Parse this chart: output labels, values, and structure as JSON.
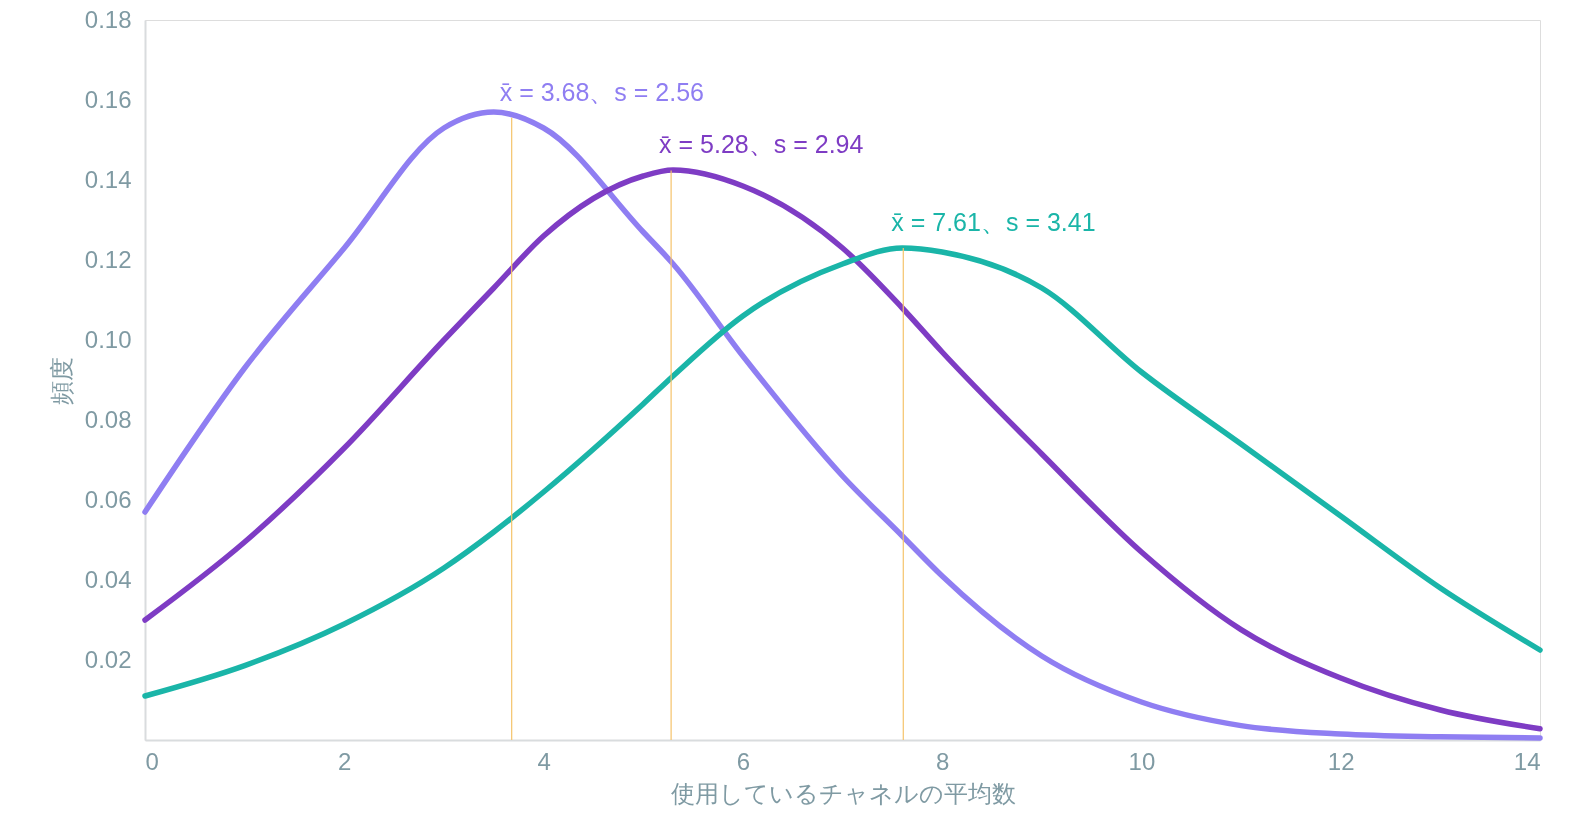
{
  "chart_data": {
    "type": "line",
    "xlabel": "使用しているチャネルの平均数",
    "ylabel": "頻度",
    "x": [
      0,
      1,
      2,
      3,
      3.5,
      4,
      5,
      5.3,
      6,
      7,
      7.6,
      8,
      9,
      10,
      11,
      12,
      13,
      14
    ],
    "series": [
      {
        "color": "#8f7ef2",
        "values": [
          0.057,
          0.093,
          0.123,
          0.153,
          0.157,
          0.153,
          0.127,
          0.119,
          0.096,
          0.066,
          0.051,
          0.041,
          0.021,
          0.0095,
          0.0036,
          0.0015,
          0.0008,
          0.0005
        ]
      },
      {
        "color": "#7e3cc4",
        "values": [
          0.03,
          0.0495,
          0.073,
          0.1,
          0.113,
          0.126,
          0.141,
          0.1425,
          0.1385,
          0.123,
          0.108,
          0.097,
          0.0715,
          0.047,
          0.0276,
          0.0155,
          0.0075,
          0.0028
        ]
      },
      {
        "color": "#1ab5a8",
        "values": [
          0.011,
          0.0186,
          0.029,
          0.043,
          0.052,
          0.062,
          0.084,
          0.091,
          0.106,
          0.119,
          0.123,
          0.122,
          0.113,
          0.092,
          0.074,
          0.056,
          0.038,
          0.0225
        ]
      }
    ],
    "xlim": [
      0,
      14
    ],
    "ylim": [
      0,
      0.18
    ],
    "xticks": [
      0,
      2,
      4,
      6,
      8,
      10,
      12,
      14
    ],
    "yticks": [
      {
        "value": 0.02,
        "label": "0.02"
      },
      {
        "value": 0.04,
        "label": "0.04"
      },
      {
        "value": 0.06,
        "label": "0.06"
      },
      {
        "value": 0.08,
        "label": "0.08"
      },
      {
        "value": 0.1,
        "label": "0.10"
      },
      {
        "value": 0.12,
        "label": "0.12"
      },
      {
        "value": 0.14,
        "label": "0.14"
      },
      {
        "value": 0.16,
        "label": "0.16"
      },
      {
        "value": 0.18,
        "label": "0.18"
      }
    ],
    "ref_lines": [
      {
        "axis": "x",
        "value": 3.68,
        "label": "x̄ = 3.68、s = 2.56",
        "color": "#f5c36a"
      },
      {
        "axis": "x",
        "value": 5.28,
        "label": "x̄ = 5.28、s = 2.94",
        "color": "#f5c36a"
      },
      {
        "axis": "x",
        "value": 7.61,
        "label": "x̄ = 7.61、s = 3.41",
        "color": "#f5c36a"
      }
    ],
    "grid": false,
    "marker": "none",
    "line_style": "solid"
  }
}
